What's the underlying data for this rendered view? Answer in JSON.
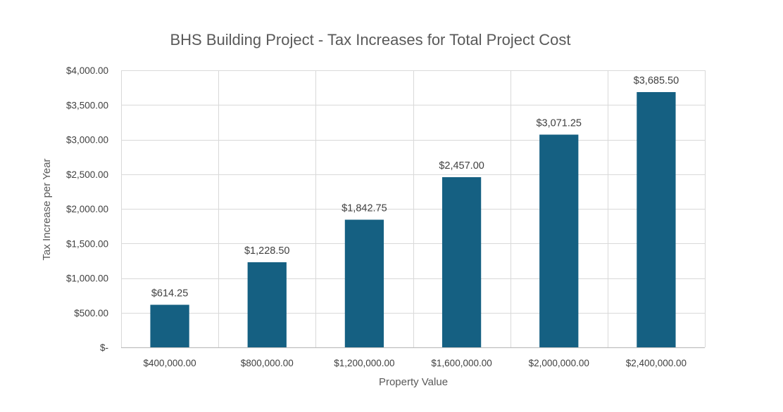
{
  "chart_data": {
    "type": "bar",
    "title": "BHS Building Project - Tax Increases for Total Project Cost",
    "xlabel": "Property Value",
    "ylabel": "Tax Increase per Year",
    "categories": [
      "$400,000.00",
      "$800,000.00",
      "$1,200,000.00",
      "$1,600,000.00",
      "$2,000,000.00",
      "$2,400,000.00"
    ],
    "values": [
      614.25,
      1228.5,
      1842.75,
      2457.0,
      3071.25,
      3685.5
    ],
    "data_labels": [
      "$614.25",
      "$1,228.50",
      "$1,842.75",
      "$2,457.00",
      "$3,071.25",
      "$3,685.50"
    ],
    "ylim": [
      0,
      4000
    ],
    "yticks": [
      0,
      500,
      1000,
      1500,
      2000,
      2500,
      3000,
      3500,
      4000
    ],
    "ytick_labels": [
      "$-",
      "$500.00",
      "$1,000.00",
      "$1,500.00",
      "$2,000.00",
      "$2,500.00",
      "$3,000.00",
      "$3,500.00",
      "$4,000.00"
    ],
    "grid": true,
    "legend": "none",
    "bar_color": "#156082"
  }
}
